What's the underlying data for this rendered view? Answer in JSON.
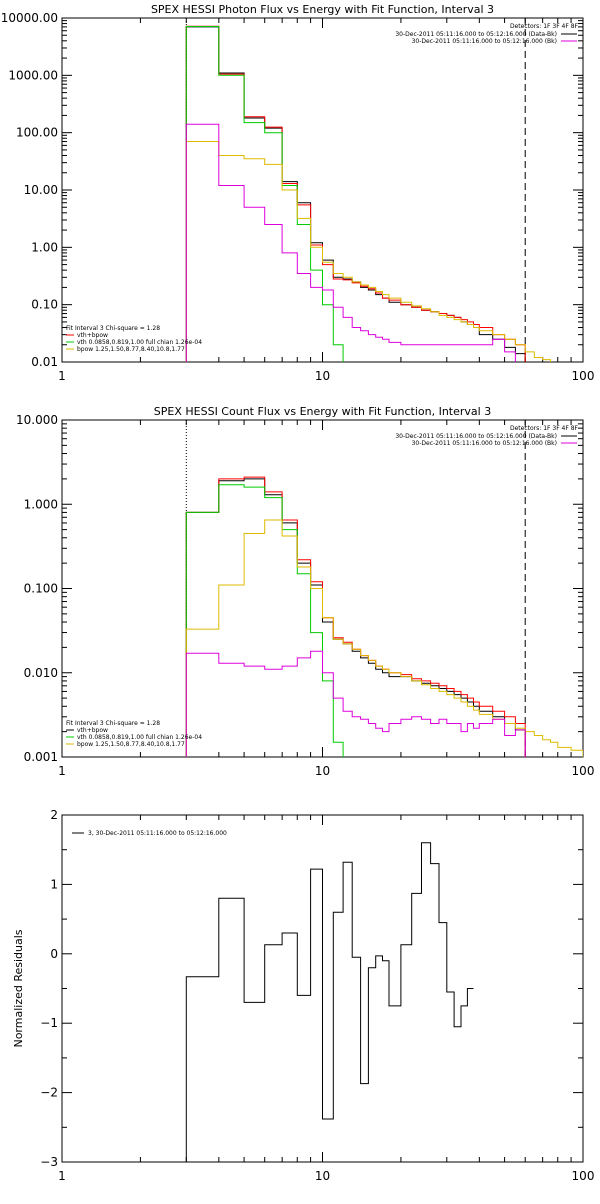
{
  "colors": {
    "total": "#000000",
    "sum": "#ff0000",
    "vth": "#00cc00",
    "bpow": "#ddbb00",
    "bk": "#dd00dd"
  },
  "chart_data": [
    {
      "id": "photon",
      "type": "line",
      "title": "SPEX HESSI Photon Flux vs Energy with Fit Function, Interval 3",
      "xscale": "log",
      "yscale": "log",
      "xlim": [
        1,
        100
      ],
      "ylim": [
        0.01,
        10000
      ],
      "xticks": [
        {
          "v": 1,
          "label": "1"
        },
        {
          "v": 10,
          "label": "10"
        },
        {
          "v": 100,
          "label": "100"
        }
      ],
      "yticks": [
        {
          "v": 0.01,
          "label": "0.01"
        },
        {
          "v": 0.1,
          "label": "0.10"
        },
        {
          "v": 1,
          "label": "1.00"
        },
        {
          "v": 10,
          "label": "10.00"
        },
        {
          "v": 100,
          "label": "100.00"
        },
        {
          "v": 1000,
          "label": "1000.00"
        },
        {
          "v": 10000,
          "label": "10000.00"
        }
      ],
      "vlines": [
        {
          "x": 3,
          "style": "dotted"
        },
        {
          "x": 60,
          "style": "dashed"
        }
      ],
      "legend_top": {
        "header": "Detectors: 1F 3F 4F 8F",
        "entries": [
          {
            "label": "30-Dec-2011 05:11:16.000 to 05:12:16.000 (Data-Bk)",
            "color": "total"
          },
          {
            "label": "30-Dec-2011 05:11:16.000 to 05:12:16.000 (Bk)",
            "color": "bk"
          }
        ]
      },
      "legend_bottom": {
        "header": "Fit Interval 3   Chi-square = 1.28",
        "entries": [
          {
            "label": "vth+bpow",
            "color": "sum"
          },
          {
            "label": "vth 0.0858,0.819,1.00  full chian 1.26e-04",
            "color": "vth"
          },
          {
            "label": "bpow 1.25,1.50,8.77,8.40,10.8,1.77",
            "color": "bpow"
          }
        ]
      },
      "edges": [
        3,
        4,
        5,
        6,
        7,
        8,
        9,
        10,
        11,
        12,
        13,
        14,
        15,
        16,
        17,
        18,
        20,
        22,
        24,
        26,
        28,
        30,
        32,
        34,
        36,
        38,
        40,
        45,
        50,
        55,
        60,
        65,
        70,
        75
      ],
      "series": [
        {
          "color": "total",
          "values": [
            7000,
            1100,
            180,
            120,
            14,
            6,
            1.2,
            0.6,
            0.3,
            0.28,
            0.25,
            0.2,
            0.18,
            0.15,
            0.13,
            0.11,
            0.1,
            0.09,
            0.08,
            0.075,
            0.07,
            0.065,
            0.06,
            0.05,
            0.045,
            0.04,
            0.03,
            0.025,
            0.018,
            0.014,
            null,
            null,
            null
          ]
        },
        {
          "color": "sum",
          "values": [
            7200,
            1050,
            190,
            125,
            13,
            5.5,
            1.1,
            0.5,
            0.28,
            0.27,
            0.24,
            0.21,
            0.19,
            0.16,
            0.13,
            0.12,
            0.1,
            0.09,
            0.08,
            0.075,
            0.07,
            0.065,
            0.06,
            0.055,
            0.05,
            0.045,
            0.04,
            0.03,
            0.025,
            0.02,
            null,
            null,
            null
          ]
        },
        {
          "color": "vth",
          "values": [
            7100,
            1000,
            150,
            100,
            12,
            2.5,
            0.4,
            0.1,
            0.02,
            null,
            null,
            null,
            null,
            null,
            null,
            null,
            null,
            null,
            null,
            null,
            null,
            null,
            null,
            null,
            null,
            null,
            null,
            null,
            null,
            null,
            null,
            null,
            null
          ]
        },
        {
          "color": "bpow",
          "values": [
            70,
            40,
            35,
            28,
            10,
            3.2,
            1,
            0.55,
            0.35,
            0.3,
            0.25,
            0.22,
            0.2,
            0.17,
            0.15,
            0.13,
            0.11,
            0.095,
            0.085,
            0.075,
            0.065,
            0.06,
            0.055,
            0.05,
            0.045,
            0.04,
            0.035,
            0.03,
            0.025,
            0.02,
            0.015,
            0.012,
            0.011
          ]
        },
        {
          "color": "bk",
          "values": [
            140,
            12,
            5,
            2.5,
            0.8,
            0.35,
            0.2,
            0.18,
            0.09,
            0.06,
            0.04,
            0.035,
            0.03,
            0.027,
            0.025,
            0.022,
            0.02,
            0.02,
            0.02,
            0.02,
            0.02,
            0.02,
            0.02,
            0.02,
            0.02,
            0.02,
            0.02,
            0.025,
            0.015,
            null,
            null,
            null,
            null
          ]
        }
      ]
    },
    {
      "id": "count",
      "type": "line",
      "title": "SPEX HESSI Count Flux vs Energy with Fit Function, Interval 3",
      "xscale": "log",
      "yscale": "log",
      "xlim": [
        1,
        100
      ],
      "ylim": [
        0.001,
        10
      ],
      "xticks": [
        {
          "v": 1,
          "label": "1"
        },
        {
          "v": 10,
          "label": "10"
        },
        {
          "v": 100,
          "label": "100"
        }
      ],
      "yticks": [
        {
          "v": 0.001,
          "label": "0.001"
        },
        {
          "v": 0.01,
          "label": "0.010"
        },
        {
          "v": 0.1,
          "label": "0.100"
        },
        {
          "v": 1,
          "label": "1.000"
        },
        {
          "v": 10,
          "label": "10.000"
        }
      ],
      "vlines": [
        {
          "x": 3,
          "style": "dotted"
        },
        {
          "x": 60,
          "style": "dashed"
        }
      ],
      "legend_top": {
        "header": "Detectors: 1F 3F 4F 8F",
        "entries": [
          {
            "label": "30-Dec-2011 05:11:16.000 to 05:12:16.000 (Data-Bk)",
            "color": "total"
          },
          {
            "label": "30-Dec-2011 05:11:16.000 to 05:12:16.000 (Bk)",
            "color": "bk"
          }
        ]
      },
      "legend_bottom": {
        "header": "Fit Interval 3   Chi-square = 1.28",
        "entries": [
          {
            "label": "vth+bpow",
            "color": "total"
          },
          {
            "label": "vth 0.0858,0.819,1.00  full chian 1.26e-04",
            "color": "vth"
          },
          {
            "label": "bpow 1.25,1.50,8.77,8.40,10.8,1.77",
            "color": "bpow"
          }
        ]
      },
      "edges": [
        3,
        4,
        5,
        6,
        7,
        8,
        9,
        10,
        11,
        12,
        13,
        14,
        15,
        16,
        17,
        18,
        20,
        22,
        24,
        26,
        28,
        30,
        32,
        34,
        36,
        38,
        40,
        45,
        50,
        55,
        60,
        65,
        70,
        75,
        80,
        90,
        100
      ],
      "series": [
        {
          "color": "total",
          "values": [
            0.8,
            1.9,
            2.0,
            1.3,
            0.6,
            0.2,
            0.11,
            0.04,
            0.025,
            0.022,
            0.018,
            0.015,
            0.013,
            0.011,
            0.01,
            0.009,
            0.009,
            0.008,
            0.0075,
            0.007,
            0.0065,
            0.006,
            0.0055,
            0.005,
            0.0045,
            0.004,
            0.0035,
            0.003,
            0.0025,
            0.0021,
            null,
            null,
            null,
            null,
            null,
            null
          ]
        },
        {
          "color": "sum",
          "values": [
            0.8,
            2.0,
            2.1,
            1.4,
            0.65,
            0.22,
            0.12,
            0.045,
            0.026,
            0.023,
            0.019,
            0.016,
            0.014,
            0.012,
            0.011,
            0.01,
            0.0095,
            0.0085,
            0.008,
            0.0075,
            0.007,
            0.0065,
            0.006,
            0.0055,
            0.005,
            0.0045,
            0.004,
            0.0035,
            0.003,
            0.0025,
            null,
            null,
            null,
            null,
            null,
            null
          ]
        },
        {
          "color": "vth",
          "values": [
            0.8,
            1.7,
            1.6,
            1.2,
            0.5,
            0.15,
            0.03,
            0.008,
            0.0015,
            null,
            null,
            null,
            null,
            null,
            null,
            null,
            null,
            null,
            null,
            null,
            null,
            null,
            null,
            null,
            null,
            null,
            null,
            null,
            null,
            null,
            null,
            null,
            null,
            null,
            null,
            null
          ]
        },
        {
          "color": "bpow",
          "values": [
            0.033,
            0.11,
            0.45,
            0.65,
            0.42,
            0.18,
            0.1,
            0.045,
            0.025,
            0.022,
            0.019,
            0.016,
            0.014,
            0.012,
            0.011,
            0.01,
            0.009,
            0.008,
            0.0072,
            0.0065,
            0.006,
            0.0055,
            0.005,
            0.0045,
            0.004,
            0.0036,
            0.0032,
            0.0028,
            0.0025,
            0.0022,
            0.002,
            0.0018,
            0.0016,
            0.0015,
            0.0013,
            0.0012
          ]
        },
        {
          "color": "bk",
          "values": [
            0.017,
            0.013,
            0.012,
            0.011,
            0.012,
            0.015,
            0.018,
            0.01,
            0.005,
            0.0035,
            0.003,
            0.0028,
            0.0025,
            0.0022,
            0.002,
            0.0025,
            0.0028,
            0.003,
            0.0028,
            0.0025,
            0.0028,
            0.0025,
            0.0025,
            0.002,
            0.0025,
            0.0022,
            0.0025,
            0.0028,
            0.0018,
            0.0021,
            null,
            null,
            null,
            null,
            null,
            null
          ]
        }
      ]
    },
    {
      "id": "resid",
      "type": "line",
      "title": "",
      "ylabel": "Normalized Residuals",
      "xscale": "log",
      "yscale": "linear",
      "xlim": [
        1,
        100
      ],
      "ylim": [
        -3,
        2
      ],
      "xticks": [
        {
          "v": 1,
          "label": "1"
        },
        {
          "v": 10,
          "label": "10"
        },
        {
          "v": 100,
          "label": "100"
        }
      ],
      "yticks": [
        {
          "v": -3,
          "label": "−3"
        },
        {
          "v": -2,
          "label": "−2"
        },
        {
          "v": -1,
          "label": "−1"
        },
        {
          "v": 0,
          "label": "0"
        },
        {
          "v": 1,
          "label": "1"
        },
        {
          "v": 2,
          "label": "2"
        }
      ],
      "vlines": [],
      "legend_top_left": {
        "entries": [
          {
            "label": "3, 30-Dec-2011 05:11:16.000 to 05:12:16.000",
            "color": "total"
          }
        ]
      },
      "edges": [
        3,
        4,
        5,
        6,
        7,
        8,
        9,
        10,
        11,
        12,
        13,
        14,
        15,
        16,
        17,
        18,
        20,
        22,
        24,
        26,
        28,
        30,
        32,
        34,
        36,
        38,
        40,
        45,
        50,
        55,
        60
      ],
      "series": [
        {
          "color": "total",
          "start_from_bottom": true,
          "values": [
            -0.33,
            0.8,
            -0.7,
            0.13,
            0.3,
            -0.6,
            1.22,
            -2.38,
            0.6,
            1.32,
            -0.05,
            -1.87,
            -0.2,
            -0.03,
            -0.1,
            -0.75,
            0.13,
            0.87,
            1.6,
            1.3,
            0.45,
            -0.55,
            -1.05,
            -0.75,
            -0.5
          ]
        }
      ]
    }
  ]
}
